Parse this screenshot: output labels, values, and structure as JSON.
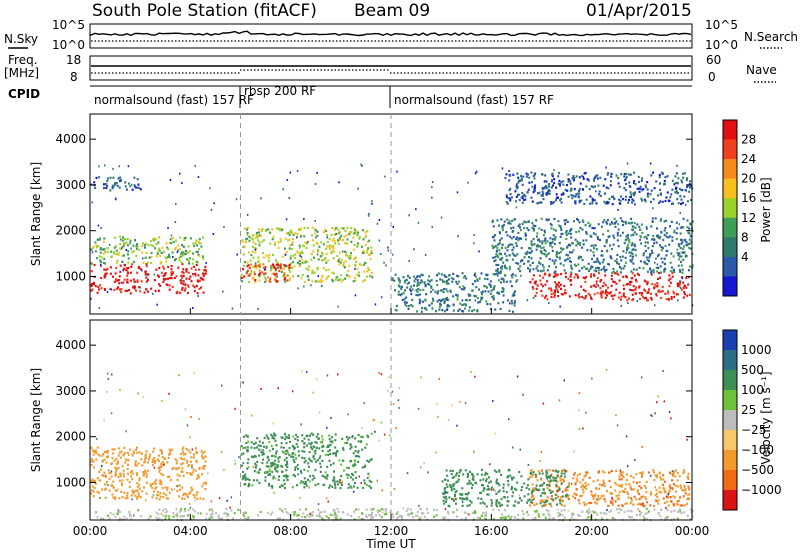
{
  "header": {
    "station": "South Pole Station (fitACF)",
    "beam": "Beam 09",
    "date": "01/Apr/2015"
  },
  "top_panels": {
    "nsky_label": "N.Sky",
    "nsearch_label": "N.Search",
    "noise_ticks_left": [
      "10^5",
      "10^0"
    ],
    "noise_ticks_right": [
      "10^5",
      "10^0"
    ],
    "freq_label_1": "Freq.",
    "freq_label_2": "[MHz]",
    "freq_ticks": [
      "18",
      "8"
    ],
    "nave_label": "Nave",
    "nave_ticks": [
      "60",
      "0"
    ],
    "cpid_label": "CPID",
    "cpid_segments": [
      {
        "label": "normalsound (fast) 157 RF",
        "start": 0,
        "end": 6.0
      },
      {
        "label": "rbsp 200 RF",
        "start": 6.0,
        "end": 12.0
      },
      {
        "label": "normalsound (fast) 157 RF",
        "start": 12.0,
        "end": 24.0
      }
    ]
  },
  "colorbars": {
    "power": {
      "label": "Power [dB]",
      "ticks": [
        "28",
        "24",
        "20",
        "16",
        "12",
        "8",
        "4"
      ],
      "colors": [
        "#e01010",
        "#f04020",
        "#f58a1a",
        "#f7c020",
        "#9bd22a",
        "#3f9d55",
        "#2f7a6c",
        "#2a5aa8",
        "#1518d0"
      ]
    },
    "velocity": {
      "label": "Velocity [m s⁻¹]",
      "ticks": [
        "1000",
        "500",
        "100",
        "25",
        "−25",
        "−100",
        "−500",
        "−1000"
      ],
      "colors": [
        "#1a3fb0",
        "#2c6e83",
        "#3e8f55",
        "#6cc23a",
        "#bdbdbd",
        "#f7c86a",
        "#f39a2d",
        "#f06a18",
        "#d91414"
      ]
    }
  },
  "chart_data": {
    "type": "heatmap",
    "xlabel": "Time UT",
    "ylabel": "Slant Range [km]",
    "xlim": [
      0,
      24
    ],
    "ylim": [
      180,
      4550
    ],
    "x_ticks": [
      "00:00",
      "04:00",
      "08:00",
      "12:00",
      "16:00",
      "20:00",
      "00:00"
    ],
    "y_ticks": [
      "1000",
      "2000",
      "3000",
      "4000"
    ],
    "y_tick_values": [
      1000,
      2000,
      3000,
      4000
    ],
    "panels": [
      "Power [dB]",
      "Velocity [m s⁻¹]"
    ],
    "dashed_lines_hours": [
      6.0,
      12.0
    ],
    "bands_power": [
      {
        "t0": 0.0,
        "t1": 4.6,
        "r0": 650,
        "r1": 1300,
        "value_db": 28
      },
      {
        "t0": 0.0,
        "t1": 4.6,
        "r0": 1300,
        "r1": 1900,
        "value_db": 14
      },
      {
        "t0": 6.0,
        "t1": 11.2,
        "r0": 900,
        "r1": 2100,
        "value_db": 16
      },
      {
        "t0": 6.0,
        "t1": 8.0,
        "r0": 900,
        "r1": 1300,
        "value_db": 26
      },
      {
        "t0": 17.5,
        "t1": 23.9,
        "r0": 500,
        "r1": 1100,
        "value_db": 28
      },
      {
        "t0": 16.0,
        "t1": 24.0,
        "r0": 1100,
        "r1": 2300,
        "value_db": 8
      },
      {
        "t0": 0.0,
        "t1": 2.0,
        "r0": 2900,
        "r1": 3200,
        "value_db": 6
      },
      {
        "t0": 16.5,
        "t1": 24.0,
        "r0": 2600,
        "r1": 3300,
        "value_db": 6
      },
      {
        "t0": 12.0,
        "t1": 17.0,
        "r0": 250,
        "r1": 1100,
        "value_db": 8
      }
    ],
    "bands_velocity": [
      {
        "t0": 0.0,
        "t1": 4.6,
        "r0": 650,
        "r1": 1800,
        "value_ms": -300
      },
      {
        "t0": 6.0,
        "t1": 11.2,
        "r0": 900,
        "r1": 2100,
        "value_ms": 200
      },
      {
        "t0": 17.5,
        "t1": 23.9,
        "r0": 500,
        "r1": 1300,
        "value_ms": -400
      },
      {
        "t0": 14.0,
        "t1": 19.0,
        "r0": 500,
        "r1": 1300,
        "value_ms": 300
      },
      {
        "t0": 0.0,
        "t1": 24.0,
        "r0": 200,
        "r1": 450,
        "value_ms": 20
      }
    ]
  }
}
